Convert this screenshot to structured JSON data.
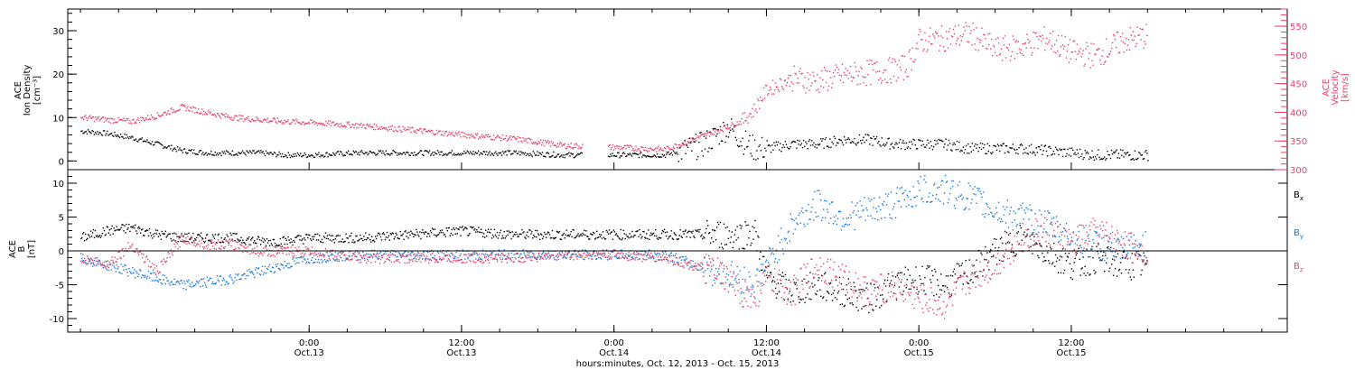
{
  "colors": {
    "black": "#000000",
    "magenta": "#e8406a",
    "blue": "#1a78d8"
  },
  "chart_data": [
    {
      "type": "scatter",
      "panel": "top",
      "ylabel_left": [
        "ACE",
        "Ion Density",
        "[cm⁻³]"
      ],
      "ylabel_right": [
        "ACE",
        "Velocity",
        "[km/s]"
      ],
      "ylim_left": [
        -2,
        35
      ],
      "ylim_right": [
        300,
        580
      ],
      "yticks_left": [
        "0",
        "10",
        "20",
        "30"
      ],
      "yticks_right": [
        "300",
        "350",
        "400",
        "450",
        "500",
        "550"
      ],
      "series": [
        {
          "color": "#000000",
          "axis": "left",
          "x_hours": [
            -18,
            -16,
            -14,
            -12,
            -10,
            -8,
            -6,
            -4,
            -2,
            0,
            4,
            8,
            12,
            16,
            20,
            24,
            28,
            30,
            31,
            32,
            33,
            34,
            35,
            36,
            38,
            40,
            42,
            44,
            46,
            48,
            50,
            52,
            54,
            56,
            58,
            60,
            62,
            64,
            66
          ],
          "y": [
            7,
            6.5,
            5.5,
            4,
            2.5,
            2,
            2,
            2,
            1.5,
            1.5,
            2,
            2,
            2,
            2,
            1.5,
            1.5,
            1.5,
            3,
            4,
            6,
            8,
            5,
            3,
            3,
            4,
            4,
            5,
            5,
            4,
            4,
            4,
            3,
            3,
            3,
            2.5,
            2,
            1.5,
            1.5,
            1.5
          ]
        },
        {
          "color": "#e8406a",
          "axis": "right",
          "x_hours": [
            -18,
            -16,
            -14,
            -12,
            -10,
            -8,
            -6,
            -4,
            -2,
            0,
            4,
            8,
            12,
            16,
            20,
            24,
            26,
            28,
            30,
            32,
            34,
            35,
            36,
            38,
            40,
            42,
            44,
            46,
            47,
            48,
            50,
            52,
            54,
            56,
            58,
            60,
            62,
            64,
            66
          ],
          "y": [
            392,
            388,
            385,
            395,
            410,
            400,
            392,
            388,
            385,
            383,
            378,
            370,
            362,
            355,
            343,
            340,
            338,
            336,
            352,
            368,
            385,
            405,
            440,
            460,
            455,
            465,
            470,
            475,
            480,
            525,
            530,
            538,
            510,
            515,
            530,
            505,
            500,
            525,
            535
          ]
        }
      ]
    },
    {
      "type": "scatter",
      "panel": "bottom",
      "ylabel": [
        "ACE",
        "B",
        "[nT]"
      ],
      "ylim": [
        -12,
        12
      ],
      "yticks": [
        "-10",
        "-5",
        "0",
        "5",
        "10"
      ],
      "legend": [
        "Bx",
        "By",
        "Bz"
      ],
      "series": [
        {
          "name": "Bx",
          "color": "#000000",
          "x_hours": [
            -18,
            -16,
            -14,
            -12,
            -10,
            -8,
            -6,
            -4,
            -2,
            0,
            4,
            8,
            12,
            16,
            20,
            24,
            28,
            32,
            34,
            35,
            36,
            38,
            40,
            42,
            44,
            46,
            48,
            50,
            52,
            54,
            56,
            58,
            60,
            62,
            64,
            66
          ],
          "y": [
            2,
            3,
            3.5,
            2.5,
            2,
            2,
            2,
            1.5,
            1.5,
            2,
            2,
            2.5,
            3,
            2.5,
            2.5,
            2.5,
            2.5,
            2.5,
            2.5,
            3,
            -4,
            -6,
            -5,
            -6,
            -7,
            -5,
            -4,
            -5,
            -3,
            0,
            2,
            0,
            -2,
            -1,
            -2,
            -2
          ]
        },
        {
          "name": "By",
          "color": "#1a78d8",
          "x_hours": [
            -18,
            -16,
            -14,
            -12,
            -10,
            -8,
            -6,
            -4,
            -2,
            0,
            4,
            8,
            12,
            16,
            20,
            24,
            28,
            32,
            34,
            35,
            36,
            38,
            40,
            42,
            44,
            46,
            48,
            50,
            52,
            54,
            56,
            58,
            60,
            62,
            64,
            66
          ],
          "y": [
            -1,
            -2,
            -3,
            -4,
            -5,
            -4.5,
            -4,
            -3,
            -2,
            -1,
            -0.5,
            -0.5,
            -0.5,
            -0.5,
            -0.5,
            -0.5,
            -0.5,
            -3,
            -4,
            -5,
            -2,
            4,
            7,
            5,
            6,
            7,
            9,
            9,
            8,
            6,
            5,
            4,
            2,
            1,
            0,
            1
          ]
        },
        {
          "name": "Bz",
          "color": "#e8406a",
          "x_hours": [
            -18,
            -16,
            -14,
            -12,
            -10,
            -8,
            -6,
            -4,
            -2,
            0,
            4,
            8,
            12,
            16,
            20,
            24,
            28,
            32,
            34,
            35,
            36,
            38,
            40,
            42,
            44,
            46,
            48,
            50,
            52,
            54,
            56,
            58,
            60,
            62,
            64,
            66
          ],
          "y": [
            -1,
            -2,
            1,
            -3,
            2,
            1,
            1,
            0,
            0,
            0,
            -1,
            -1,
            -1,
            -1,
            -0.5,
            -0.5,
            -1,
            -3,
            -6,
            -7,
            -4,
            -6,
            -2,
            -4,
            -6,
            -5,
            -7,
            -8,
            -4,
            -2,
            2,
            3,
            1,
            3,
            1,
            0
          ]
        }
      ]
    }
  ],
  "x_ticks": [
    {
      "hour": 0,
      "time": "0:00",
      "day": "Oct.13"
    },
    {
      "hour": 12,
      "time": "12:00",
      "day": "Oct.13"
    },
    {
      "hour": 24,
      "time": "0:00",
      "day": "Oct.14"
    },
    {
      "hour": 36,
      "time": "12:00",
      "day": "Oct.14"
    },
    {
      "hour": 48,
      "time": "0:00",
      "day": "Oct.15"
    },
    {
      "hour": 60,
      "time": "12:00",
      "day": "Oct.15"
    }
  ],
  "x_range_hours": [
    -19,
    77
  ],
  "xlabel": "hours:minutes, Oct. 12, 2013 - Oct. 15, 2013",
  "legend_labels": {
    "bx": "B",
    "bx_sub": "x",
    "by": "B",
    "by_sub": "y",
    "bz": "B",
    "bz_sub": "z"
  }
}
